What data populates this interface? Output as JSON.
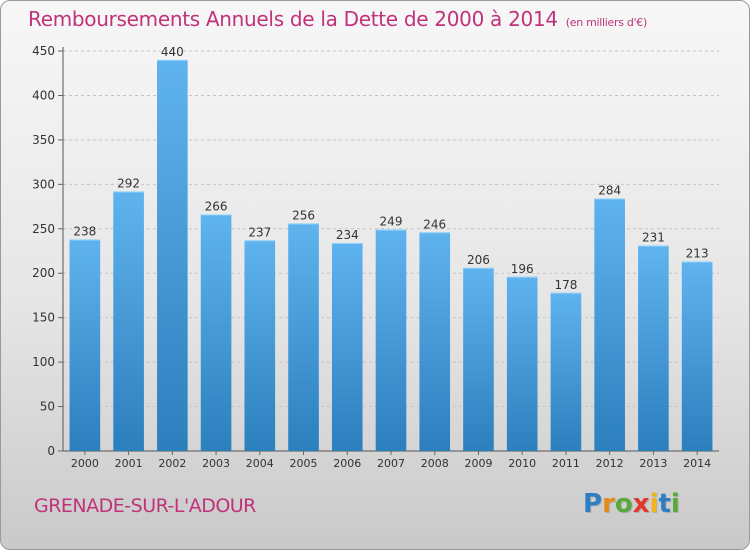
{
  "chart_data": {
    "type": "bar",
    "title": "Remboursements Annuels de la Dette de 2000 à 2014",
    "subtitle": "(en milliers d'€)",
    "categories": [
      "2000",
      "2001",
      "2002",
      "2003",
      "2004",
      "2005",
      "2006",
      "2007",
      "2008",
      "2009",
      "2010",
      "2011",
      "2012",
      "2013",
      "2014"
    ],
    "values": [
      238,
      292,
      440,
      266,
      237,
      256,
      234,
      249,
      246,
      206,
      196,
      178,
      284,
      231,
      213
    ],
    "yticks": [
      0,
      50,
      100,
      150,
      200,
      250,
      300,
      350,
      400,
      450
    ],
    "ylim": [
      0,
      450
    ],
    "grid": true,
    "colors": {
      "bar_top": "#5fb3ee",
      "bar_bottom": "#2c7fbd",
      "title": "#c0327a",
      "grid": "#c4c4c4"
    }
  },
  "footer": {
    "commune": "GRENADE-SUR-L'ADOUR",
    "logo_letters": [
      "P",
      "r",
      "o",
      "x",
      "i",
      "t",
      "i"
    ]
  }
}
